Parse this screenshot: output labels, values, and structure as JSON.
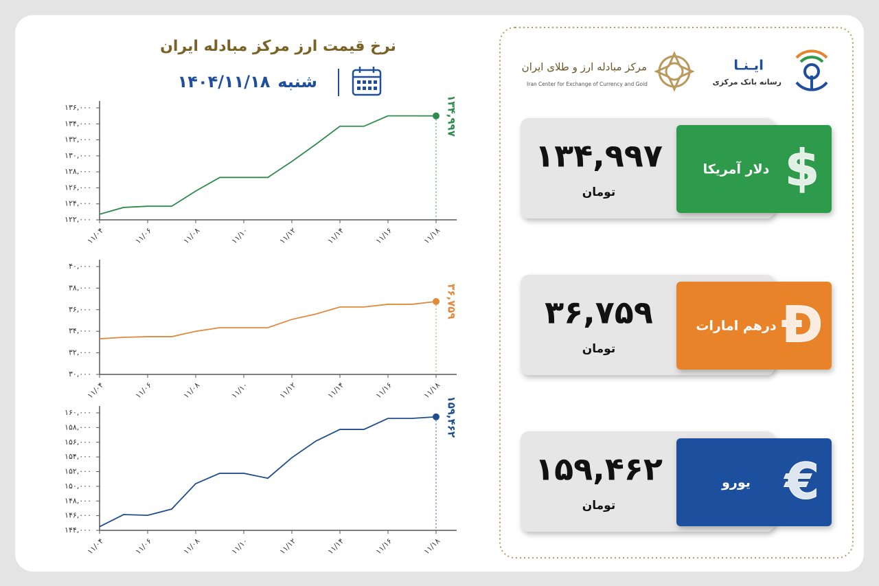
{
  "header": {
    "title": "نرخ قیمت ارز مرکز مبادله ایران",
    "weekday": "شنبه",
    "date": "۱۴۰۴/۱۱/۱۸"
  },
  "logos": {
    "ina": "ایـنـا",
    "ina_sub": "رسانه بانک مرکزی",
    "center_fa": "مرکز مبادله ارز و طلای ایران",
    "center_en": "Iran Center for Exchange of Currency and Gold"
  },
  "cards": [
    {
      "name": "دلار آمریکا",
      "symbol": "$",
      "unit": "تومان",
      "color": "#2f9a4c"
    },
    {
      "name": "درهم امارات",
      "symbol": "Đ",
      "unit": "تومان",
      "color": "#e8832c"
    },
    {
      "name": "یورو",
      "symbol": "€",
      "unit": "تومان",
      "color": "#1f4f9e"
    }
  ],
  "chart_data": [
    {
      "type": "line",
      "color": "#2e8b4c",
      "categories": [
        "۱۱/۰۴",
        null,
        "۱۱/۰۶",
        null,
        "۱۱/۰۸",
        null,
        "۱۱/۱۰",
        null,
        "۱۱/۱۲",
        null,
        "۱۱/۱۴",
        null,
        "۱۱/۱۶",
        null,
        "۱۱/۱۸"
      ],
      "values": [
        122700,
        123550,
        123700,
        123700,
        125600,
        127300,
        127300,
        127300,
        129300,
        131450,
        133700,
        133700,
        135000,
        135000,
        134997
      ],
      "value_labels": [
        null,
        null,
        null,
        null,
        null,
        null,
        null,
        null,
        null,
        null,
        null,
        null,
        null,
        null,
        "۱۳۴,۹۹۷"
      ],
      "ylim": [
        122000,
        136000
      ],
      "yticks": [
        {
          "value": 122000,
          "label": "۱۲۲,۰۰۰"
        },
        {
          "value": 124000,
          "label": "۱۲۴,۰۰۰"
        },
        {
          "value": 126000,
          "label": "۱۲۶,۰۰۰"
        },
        {
          "value": 128000,
          "label": "۱۲۸,۰۰۰"
        },
        {
          "value": 130000,
          "label": "۱۳۰,۰۰۰"
        },
        {
          "value": 132000,
          "label": "۱۳۲,۰۰۰"
        },
        {
          "value": 134000,
          "label": "۱۳۴,۰۰۰"
        },
        {
          "value": 136000,
          "label": "۱۳۶,۰۰۰"
        }
      ]
    },
    {
      "type": "line",
      "color": "#e0893c",
      "categories": [
        "۱۱/۰۴",
        null,
        "۱۱/۰۶",
        null,
        "۱۱/۰۸",
        null,
        "۱۱/۱۰",
        null,
        "۱۱/۱۲",
        null,
        "۱۱/۱۴",
        null,
        "۱۱/۱۶",
        null,
        "۱۱/۱۸"
      ],
      "values": [
        33300,
        33440,
        33500,
        33500,
        34000,
        34330,
        34330,
        34330,
        35100,
        35600,
        36250,
        36250,
        36500,
        36500,
        36759
      ],
      "value_labels": [
        null,
        null,
        null,
        null,
        null,
        null,
        null,
        null,
        null,
        null,
        null,
        null,
        null,
        null,
        "۳۶,۷۵۹"
      ],
      "ylim": [
        30000,
        40000
      ],
      "yticks": [
        {
          "value": 30000,
          "label": "۳۰,۰۰۰"
        },
        {
          "value": 32000,
          "label": "۳۲,۰۰۰"
        },
        {
          "value": 34000,
          "label": "۳۴,۰۰۰"
        },
        {
          "value": 36000,
          "label": "۳۶,۰۰۰"
        },
        {
          "value": 38000,
          "label": "۳۸,۰۰۰"
        },
        {
          "value": 40000,
          "label": "۴۰,۰۰۰"
        }
      ]
    },
    {
      "type": "line",
      "color": "#1f4e8c",
      "categories": [
        "۱۱/۰۴",
        null,
        "۱۱/۰۶",
        null,
        "۱۱/۰۸",
        null,
        "۱۱/۱۰",
        null,
        "۱۱/۱۲",
        null,
        "۱۱/۱۴",
        null,
        "۱۱/۱۶",
        null,
        "۱۱/۱۸"
      ],
      "values": [
        144500,
        146150,
        146050,
        146900,
        150360,
        151770,
        151770,
        151100,
        153900,
        156160,
        157750,
        157750,
        159250,
        159250,
        159462
      ],
      "value_labels": [
        null,
        null,
        null,
        null,
        null,
        null,
        null,
        null,
        null,
        null,
        null,
        null,
        null,
        null,
        "۱۵۹,۴۶۲"
      ],
      "ylim": [
        144000,
        160000
      ],
      "yticks": [
        {
          "value": 144000,
          "label": "۱۴۴,۰۰۰"
        },
        {
          "value": 146000,
          "label": "۱۴۶,۰۰۰"
        },
        {
          "value": 148000,
          "label": "۱۴۸,۰۰۰"
        },
        {
          "value": 150000,
          "label": "۱۵۰,۰۰۰"
        },
        {
          "value": 152000,
          "label": "۱۵۲,۰۰۰"
        },
        {
          "value": 154000,
          "label": "۱۵۴,۰۰۰"
        },
        {
          "value": 156000,
          "label": "۱۵۶,۰۰۰"
        },
        {
          "value": 158000,
          "label": "۱۵۸,۰۰۰"
        },
        {
          "value": 160000,
          "label": "۱۶۰,۰۰۰"
        }
      ]
    }
  ]
}
